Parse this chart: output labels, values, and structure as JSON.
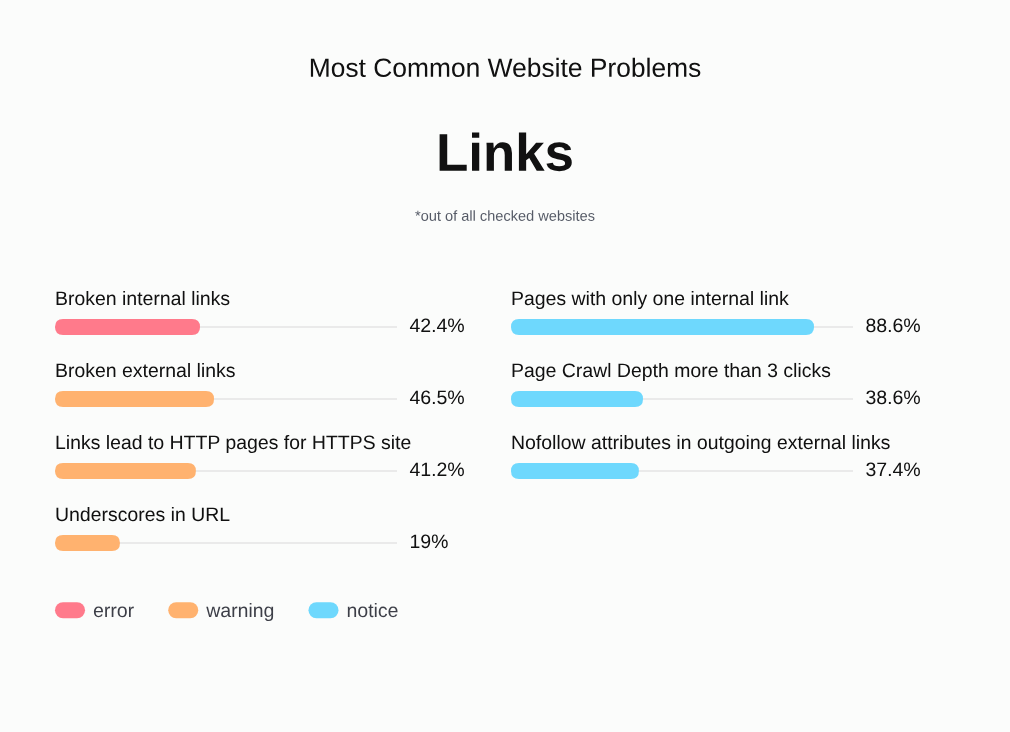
{
  "chart_data": [
    {
      "type": "other",
      "title": "Most Common Website Problems",
      "subtitle": "Links",
      "annotations": [
        "*out of all checked websites"
      ]
    },
    {
      "type": "bar",
      "orientation": "horizontal",
      "stacked": true,
      "categories": [
        "Broken internal links",
        "Broken external links",
        "Links lead to HTTP pages for HTTPS site",
        "Underscores in URL"
      ],
      "series": [
        {
          "name": "error",
          "color": "#ff7a8b",
          "values": [
            42.4,
            null,
            null,
            null
          ],
          "value_labels": [
            "42.4%",
            null,
            null,
            null
          ]
        },
        {
          "name": "warning",
          "color": "#ffb26f",
          "values": [
            null,
            46.5,
            41.2,
            19
          ],
          "value_labels": [
            null,
            "46.5%",
            "41.2%",
            "19%"
          ]
        }
      ],
      "xlim": [
        0,
        100
      ],
      "grid": "y",
      "tick_labels": "y",
      "legend": "bottom left"
    },
    {
      "type": "bar",
      "orientation": "horizontal",
      "categories": [
        "Pages with only one internal link",
        "Page Crawl Depth more than 3 clicks",
        "Nofollow attributes in outgoing external links"
      ],
      "series": [
        {
          "name": "notice",
          "color": "#6ed8fd",
          "values": [
            88.6,
            38.6,
            37.4
          ],
          "value_labels": [
            "88.6%",
            "38.6%",
            "37.4%"
          ]
        }
      ],
      "xlim": [
        0,
        100
      ],
      "grid": "y",
      "tick_labels": "y",
      "legend": "bottom left"
    }
  ]
}
